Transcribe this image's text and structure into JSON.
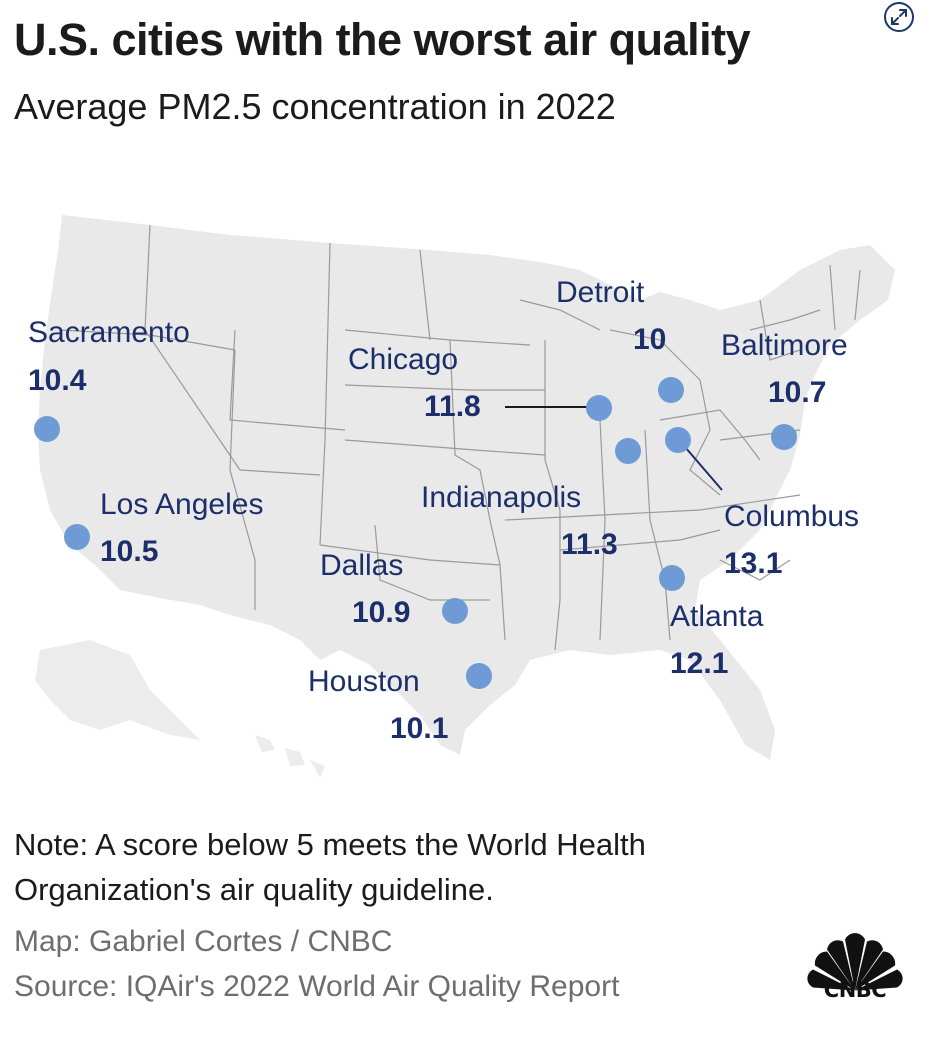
{
  "header": {
    "title": "U.S. cities with the worst air quality",
    "subtitle": "Average PM2.5 concentration in 2022"
  },
  "icons": {
    "expand": "expand-icon",
    "logo": "cnbc-peacock-logo"
  },
  "colors": {
    "land": "#e9e9e9",
    "borders": "#9a9a9a",
    "dot": "#6e9bd6",
    "label": "#1c2f6b",
    "credit": "#6e6e6e"
  },
  "map": {
    "cities": [
      {
        "name": "Sacramento",
        "value": "10.4"
      },
      {
        "name": "Los Angeles",
        "value": "10.5"
      },
      {
        "name": "Chicago",
        "value": "11.8"
      },
      {
        "name": "Detroit",
        "value": "10"
      },
      {
        "name": "Baltimore",
        "value": "10.7"
      },
      {
        "name": "Indianapolis",
        "value": "11.3"
      },
      {
        "name": "Columbus",
        "value": "13.1"
      },
      {
        "name": "Dallas",
        "value": "10.9"
      },
      {
        "name": "Atlanta",
        "value": "12.1"
      },
      {
        "name": "Houston",
        "value": "10.1"
      }
    ]
  },
  "footer": {
    "note": "Note: A score below 5 meets the World Health Organization's air quality guideline.",
    "map_credit": "Map: Gabriel Cortes / CNBC",
    "source": "Source: IQAir's 2022 World Air Quality Report",
    "logo_text": "CNBC"
  }
}
